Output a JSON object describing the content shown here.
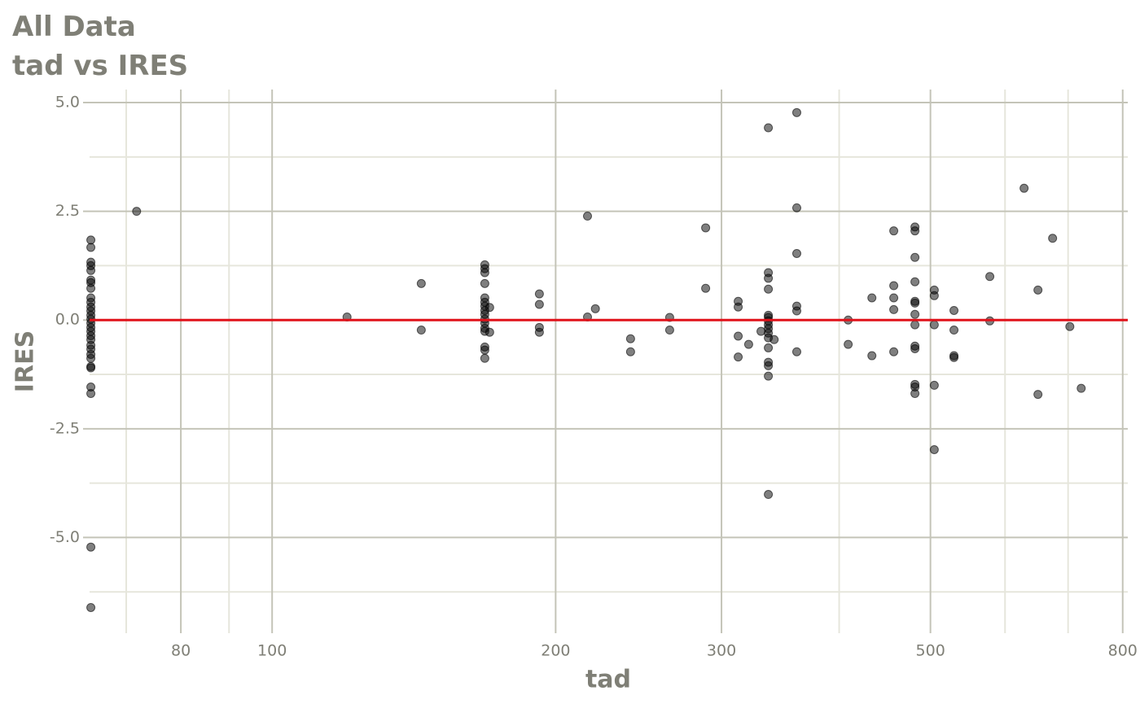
{
  "chart_data": {
    "type": "scatter",
    "title": "All Data",
    "subtitle": "tad vs IRES",
    "x_label": "tad",
    "y_label": "IRES",
    "x_scale": "log",
    "grid": true,
    "color": "#000000",
    "hline": 0,
    "hline_color": "#e0121a",
    "xlim": [
      64,
      810
    ],
    "xticks": [
      80,
      100,
      200,
      300,
      500,
      800
    ],
    "x_minor_grid": [
      70,
      90,
      400,
      600,
      700
    ],
    "ylim": [
      -7.2,
      5.3
    ],
    "yticks": [
      {
        "value": -5,
        "label": "-5.0"
      },
      {
        "value": -2.5,
        "label": "-2.5"
      },
      {
        "value": 0,
        "label": "0.0"
      },
      {
        "value": 2.5,
        "label": "2.5"
      },
      {
        "value": 5,
        "label": "5.0"
      }
    ],
    "y_minor_grid": [
      -6.25,
      -3.75,
      -1.25,
      1.25,
      3.75
    ],
    "x": [
      64.2,
      64.2,
      64.2,
      64.2,
      64.2,
      64.2,
      64.2,
      64.2,
      64.2,
      64.2,
      64.2,
      64.2,
      64.2,
      64.2,
      64.2,
      64.2,
      64.2,
      64.2,
      64.2,
      64.2,
      64.2,
      64.2,
      64.2,
      64.2,
      64.2,
      64.2,
      64.2,
      64.2,
      64.2,
      71.8,
      120.1,
      144,
      144,
      168.2,
      168.2,
      168.2,
      168.2,
      168.2,
      168.2,
      168.2,
      168.2,
      168.2,
      168.2,
      168.2,
      168.2,
      168.2,
      168.2,
      168.2,
      168.2,
      170.2,
      170.2,
      192.2,
      192.2,
      192.2,
      192.2,
      216.2,
      216.2,
      220.4,
      240.2,
      240.2,
      264.3,
      264.3,
      288.6,
      288.6,
      312.5,
      312.5,
      312.5,
      312.5,
      320.6,
      330.4,
      336.4,
      336.4,
      336.4,
      336.4,
      336.4,
      336.4,
      336.4,
      336.4,
      336.4,
      336.4,
      336.4,
      336.4,
      336.4,
      336.4,
      336.4,
      336.4,
      341.2,
      360.6,
      360.6,
      360.6,
      360.6,
      360.6,
      360.6,
      408.9,
      408.9,
      433.3,
      433.3,
      457.1,
      457.1,
      457.1,
      457.1,
      457.1,
      481.4,
      481.4,
      481.4,
      481.4,
      481.4,
      481.4,
      481.4,
      481.4,
      481.4,
      481.4,
      481.4,
      481.4,
      481.4,
      504.7,
      504.7,
      504.7,
      504.7,
      504.7,
      529.6,
      529.6,
      529.6,
      529.6,
      578.1,
      578.1,
      628.6,
      650.3,
      650.3,
      674,
      703,
      722.8
    ],
    "values": [
      1.84,
      1.67,
      1.33,
      1.25,
      1.14,
      0.92,
      0.86,
      0.73,
      0.51,
      0.41,
      0.3,
      0.21,
      0.11,
      0.02,
      -0.07,
      -0.17,
      -0.26,
      -0.36,
      -0.45,
      -0.58,
      -0.67,
      -0.79,
      -0.88,
      -1.07,
      -1.1,
      -1.54,
      -1.69,
      -5.22,
      -6.61,
      2.5,
      0.07,
      0.84,
      -0.23,
      1.27,
      1.18,
      1.09,
      0.84,
      0.51,
      0.41,
      0.32,
      0.22,
      0.13,
      0.02,
      -0.07,
      -0.19,
      -0.26,
      -0.62,
      -0.69,
      -0.88,
      0.29,
      -0.28,
      0.6,
      0.36,
      -0.17,
      -0.28,
      2.39,
      0.07,
      0.26,
      -0.43,
      -0.73,
      0.06,
      -0.23,
      2.12,
      0.73,
      0.43,
      0.3,
      -0.37,
      -0.85,
      -0.56,
      -0.26,
      4.42,
      1.09,
      0.96,
      0.71,
      0.11,
      0.06,
      -0.02,
      -0.11,
      -0.2,
      -0.3,
      -0.41,
      -0.64,
      -0.97,
      -1.05,
      -1.29,
      -4.01,
      -0.45,
      4.77,
      2.58,
      1.53,
      0.32,
      0.21,
      -0.73,
      0,
      -0.56,
      0.51,
      -0.82,
      2.05,
      0.79,
      0.51,
      0.24,
      -0.73,
      2.14,
      2.05,
      1.44,
      0.88,
      0.43,
      0.39,
      0.13,
      -0.11,
      -0.6,
      -0.66,
      -1.48,
      -1.54,
      -1.69,
      0.69,
      0.56,
      -0.11,
      -1.5,
      -2.98,
      0.22,
      -0.23,
      -0.82,
      -0.86,
      1,
      -0.02,
      3.03,
      0.69,
      -1.71,
      1.88,
      -0.15,
      -1.57
    ]
  }
}
